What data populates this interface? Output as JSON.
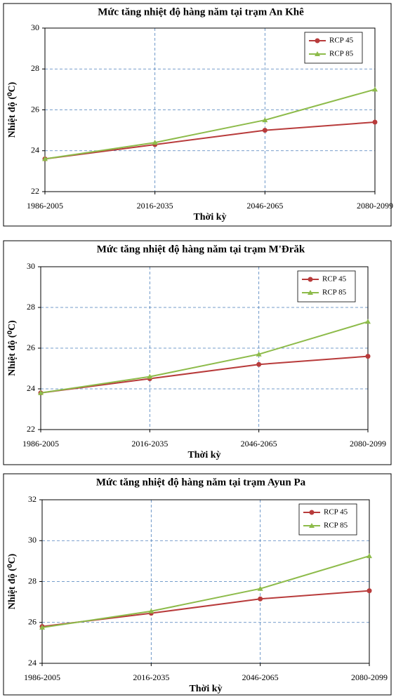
{
  "chart_data": [
    {
      "type": "line",
      "title": "Mức tăng nhiệt độ hàng năm tại trạm An Khê",
      "x_label": "Thời kỳ",
      "y_label": "Nhiệt độ (⁰C)",
      "categories": [
        "1986-2005",
        "2016-2035",
        "2046-2065",
        "2080-2099"
      ],
      "series": [
        {
          "name": "RCP 45",
          "color": "#b83b3b",
          "marker": "circle",
          "values": [
            23.6,
            24.3,
            25.0,
            25.4
          ]
        },
        {
          "name": "RCP 85",
          "color": "#8dbb4a",
          "marker": "triangle",
          "values": [
            23.6,
            24.4,
            25.5,
            27.0
          ]
        }
      ],
      "ylim": [
        22,
        30
      ],
      "yticks": [
        22,
        24,
        26,
        28,
        30
      ],
      "grid": true,
      "legend": "top-right"
    },
    {
      "type": "line",
      "title": "Mức tăng nhiệt độ hàng năm tại trạm M'Đrăk",
      "x_label": "Thời kỳ",
      "y_label": "Nhiệt độ (⁰C)",
      "categories": [
        "1986-2005",
        "2016-2035",
        "2046-2065",
        "2080-2099"
      ],
      "series": [
        {
          "name": "RCP 45",
          "color": "#b83b3b",
          "marker": "circle",
          "values": [
            23.8,
            24.5,
            25.2,
            25.6
          ]
        },
        {
          "name": "RCP 85",
          "color": "#8dbb4a",
          "marker": "triangle",
          "values": [
            23.8,
            24.6,
            25.7,
            27.3
          ]
        }
      ],
      "ylim": [
        22,
        30
      ],
      "yticks": [
        22,
        24,
        26,
        28,
        30
      ],
      "grid": true,
      "legend": "top-right"
    },
    {
      "type": "line",
      "title": "Mức tăng nhiệt độ hàng năm tại trạm Ayun Pa",
      "x_label": "Thời kỳ",
      "y_label": "Nhiệt độ (⁰C)",
      "categories": [
        "1986-2005",
        "2016-2035",
        "2046-2065",
        "2080-2099"
      ],
      "series": [
        {
          "name": "RCP 45",
          "color": "#b83b3b",
          "marker": "circle",
          "values": [
            25.8,
            26.45,
            27.15,
            27.55
          ]
        },
        {
          "name": "RCP 85",
          "color": "#8dbb4a",
          "marker": "triangle",
          "values": [
            25.75,
            26.55,
            27.65,
            29.25
          ]
        }
      ],
      "ylim": [
        24,
        32
      ],
      "yticks": [
        24,
        26,
        28,
        30,
        32
      ],
      "grid": true,
      "legend": "top-right"
    }
  ]
}
